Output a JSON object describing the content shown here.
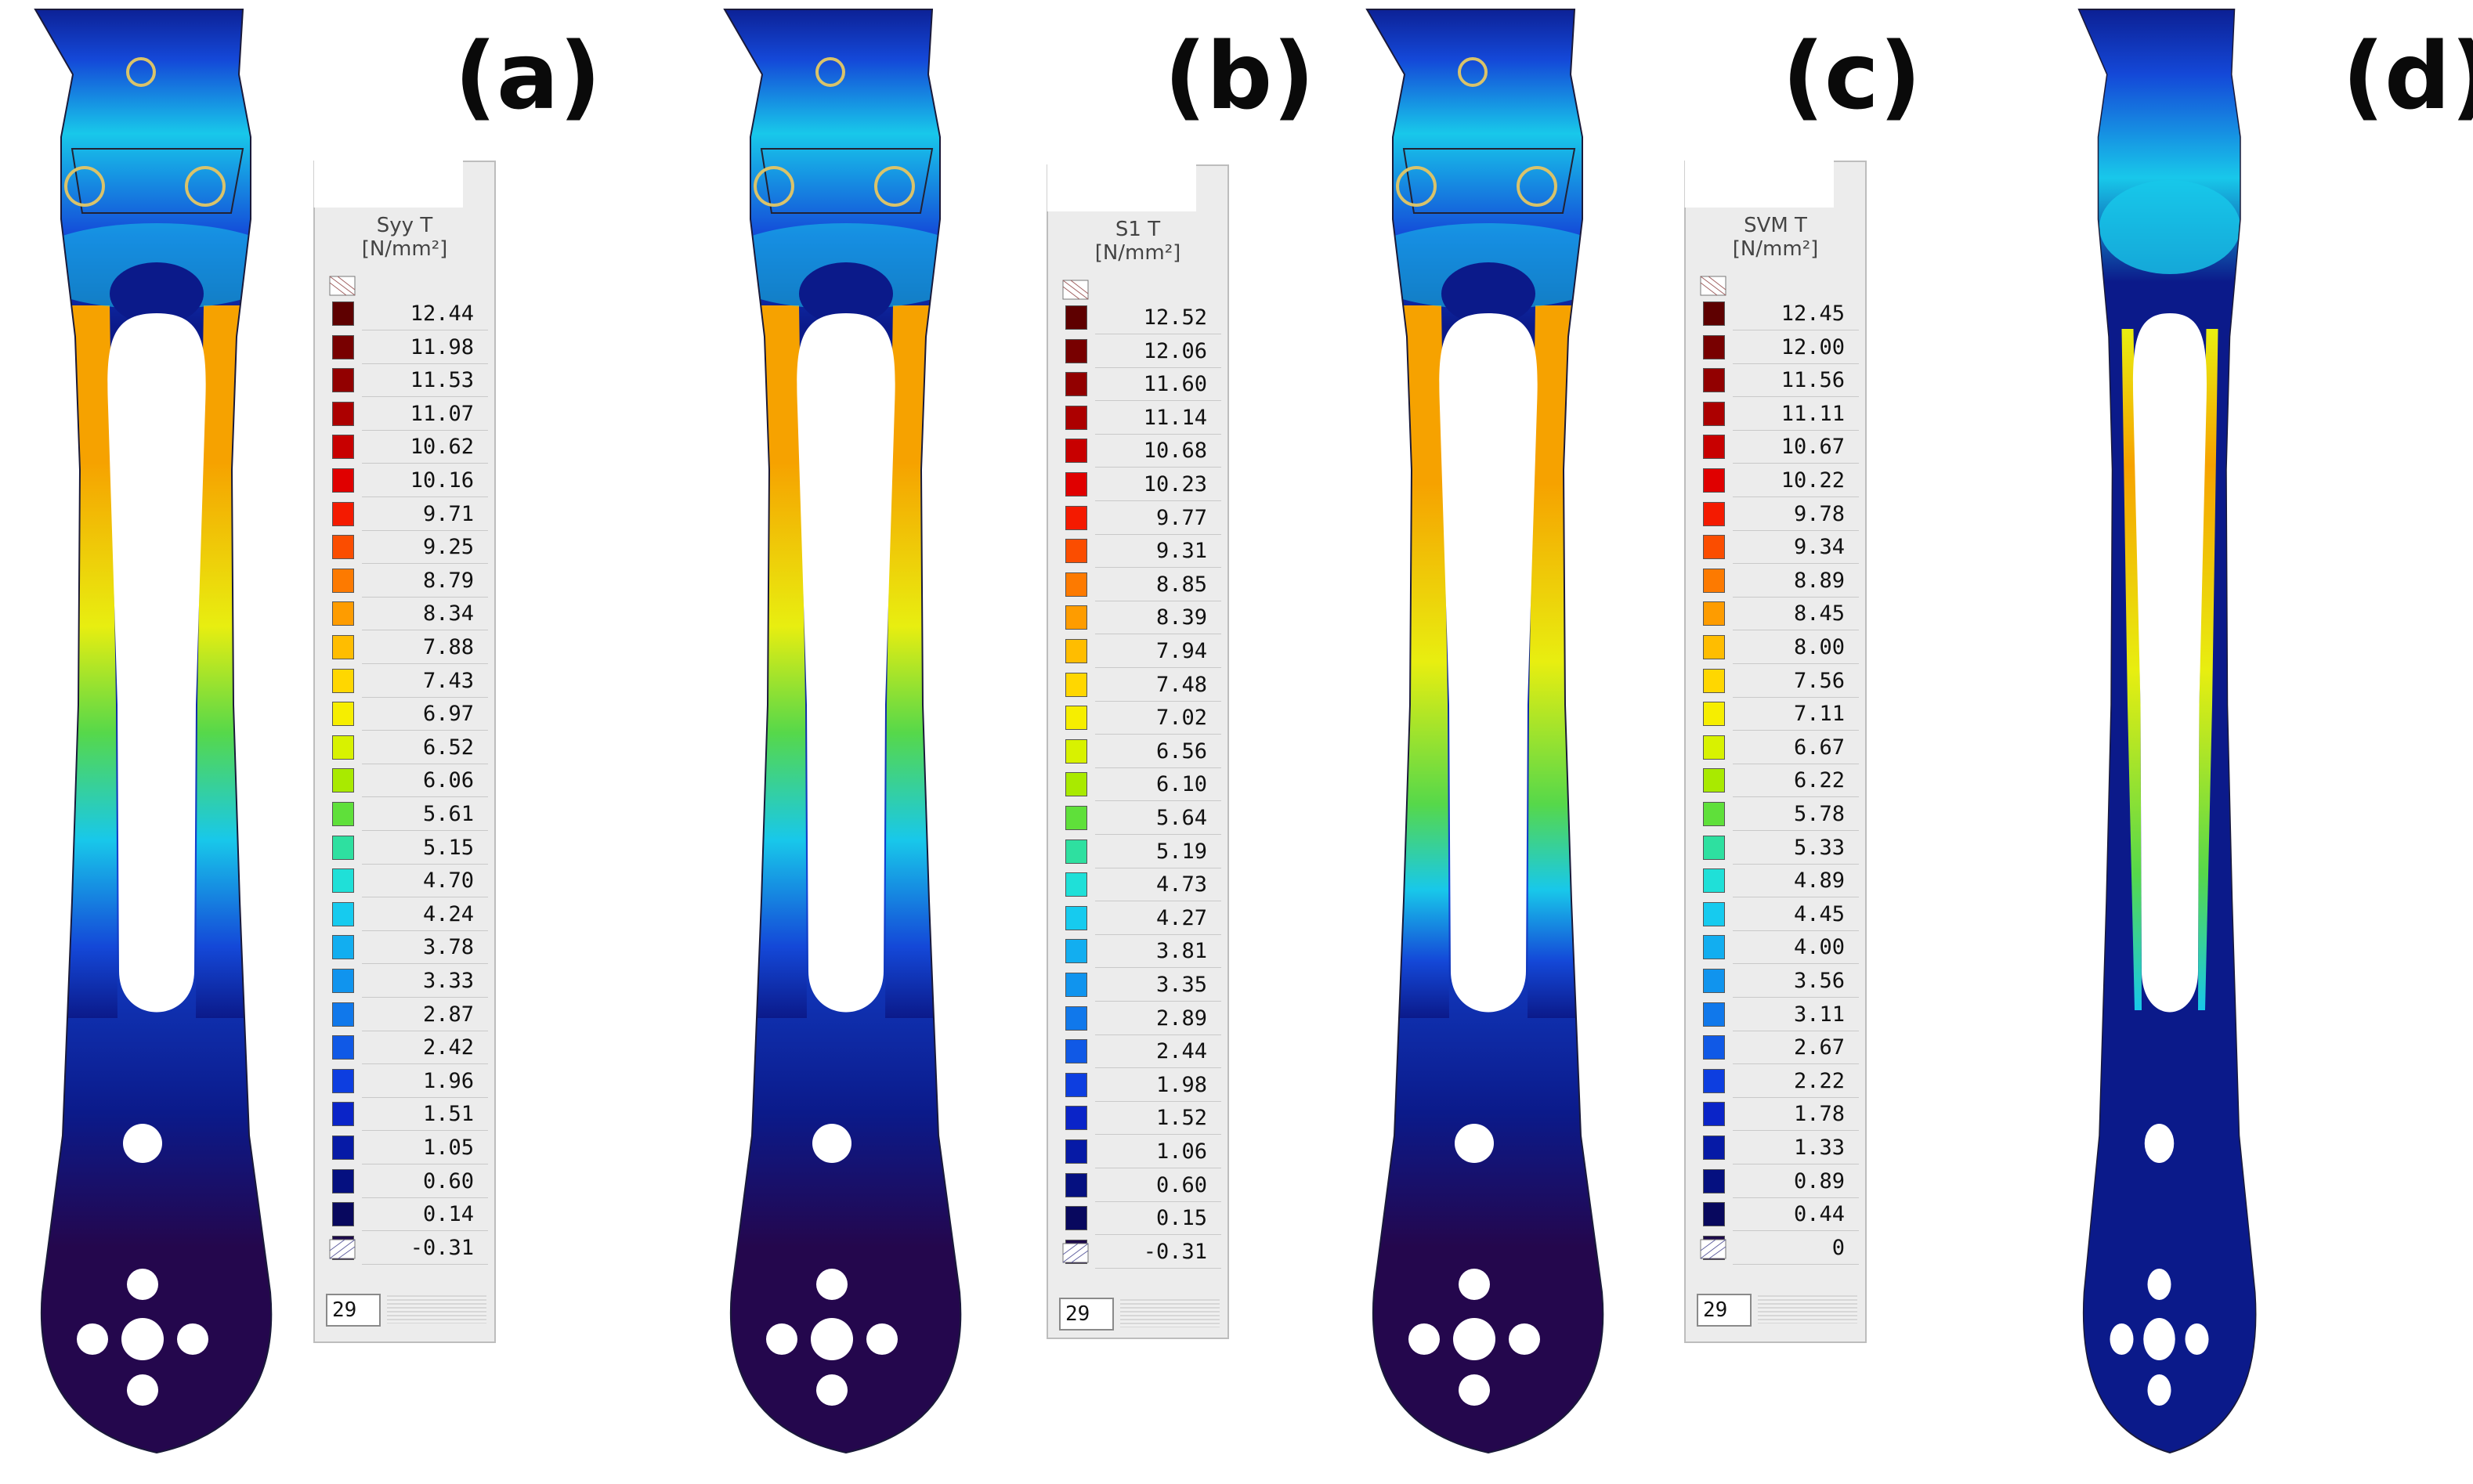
{
  "panels": [
    {
      "label": "(a)",
      "legend": {
        "title_line1": "Syy T",
        "title_line2": "[N/mm²]",
        "values": [
          "12.44",
          "11.98",
          "11.53",
          "11.07",
          "10.62",
          "10.16",
          "9.71",
          "9.25",
          "8.79",
          "8.34",
          "7.88",
          "7.43",
          "6.97",
          "6.52",
          "6.06",
          "5.61",
          "5.15",
          "4.70",
          "4.24",
          "3.78",
          "3.33",
          "2.87",
          "2.42",
          "1.96",
          "1.51",
          "1.05",
          "0.60",
          "0.14",
          "-0.31"
        ],
        "count": "29"
      }
    },
    {
      "label": "(b)",
      "legend": {
        "title_line1": "S1 T",
        "title_line2": "[N/mm²]",
        "values": [
          "12.52",
          "12.06",
          "11.60",
          "11.14",
          "10.68",
          "10.23",
          "9.77",
          "9.31",
          "8.85",
          "8.39",
          "7.94",
          "7.48",
          "7.02",
          "6.56",
          "6.10",
          "5.64",
          "5.19",
          "4.73",
          "4.27",
          "3.81",
          "3.35",
          "2.89",
          "2.44",
          "1.98",
          "1.52",
          "1.06",
          "0.60",
          "0.15",
          "-0.31"
        ],
        "count": "29"
      }
    },
    {
      "label": "(c)",
      "legend": {
        "title_line1": "SVM T",
        "title_line2": "[N/mm²]",
        "values": [
          "12.45",
          "12.00",
          "11.56",
          "11.11",
          "10.67",
          "10.22",
          "9.78",
          "9.34",
          "8.89",
          "8.45",
          "8.00",
          "7.56",
          "7.11",
          "6.67",
          "6.22",
          "5.78",
          "5.33",
          "4.89",
          "4.45",
          "4.00",
          "3.56",
          "3.11",
          "2.67",
          "2.22",
          "1.78",
          "1.33",
          "0.89",
          "0.44",
          "0"
        ],
        "count": "29"
      }
    },
    {
      "label": "(d)"
    }
  ],
  "colors": {
    "scale": [
      "#5e0000",
      "#780000",
      "#920000",
      "#ac0000",
      "#c80000",
      "#e00000",
      "#f41a00",
      "#fb4d00",
      "#fd7a00",
      "#fe9c00",
      "#ffbd00",
      "#ffd700",
      "#f6ee00",
      "#d8f200",
      "#a9ea00",
      "#5fe03a",
      "#2ee0a0",
      "#1fe0d8",
      "#16cbef",
      "#12aef0",
      "#1094ee",
      "#1078eb",
      "#1059e6",
      "#0d3ee0",
      "#0a24c8",
      "#061aa6",
      "#051080",
      "#08085e",
      "#1c0a4a"
    ],
    "deep": "#24074d",
    "navy": "#0b1a8a",
    "blue": "#1448d8",
    "cyan": "#18c8ea",
    "green": "#56d84a",
    "yellow": "#e8ee10",
    "orange": "#f6a200",
    "red": "#e62010",
    "hole": "#ffffff",
    "ring": "#d9c36a"
  }
}
